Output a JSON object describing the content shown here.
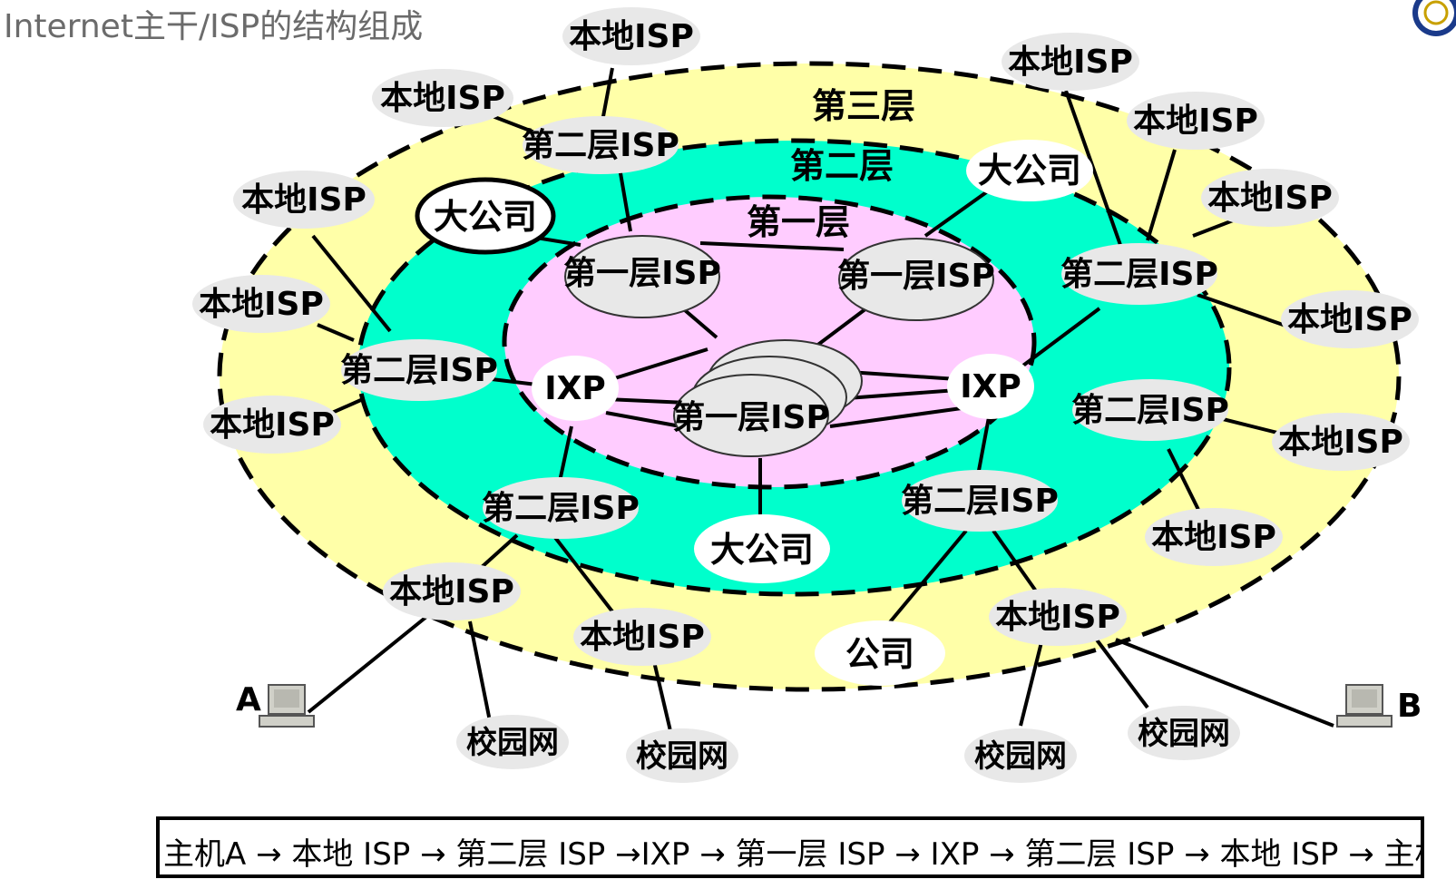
{
  "title": "Internet主干/ISP的结构组成",
  "layers": {
    "tier3": "第三层",
    "tier2": "第二层",
    "tier1": "第一层"
  },
  "labels": {
    "local_isp": "本地ISP",
    "tier2_isp": "第二层ISP",
    "tier1_isp": "第一层ISP",
    "ixp": "IXP",
    "big_company": "大公司",
    "company": "公司",
    "campus": "校园网",
    "host_a": "A",
    "host_b": "B"
  },
  "path_caption": "主机A → 本地 ISP → 第二层 ISP →IXP → 第一层 ISP → IXP → 第二层 ISP → 本地 ISP → 主机B",
  "colors": {
    "tier3_fill": "#ffffa8",
    "tier2_fill": "#00ffcc",
    "tier1_fill": "#ffccff",
    "node_fill": "#e8e8e8"
  }
}
